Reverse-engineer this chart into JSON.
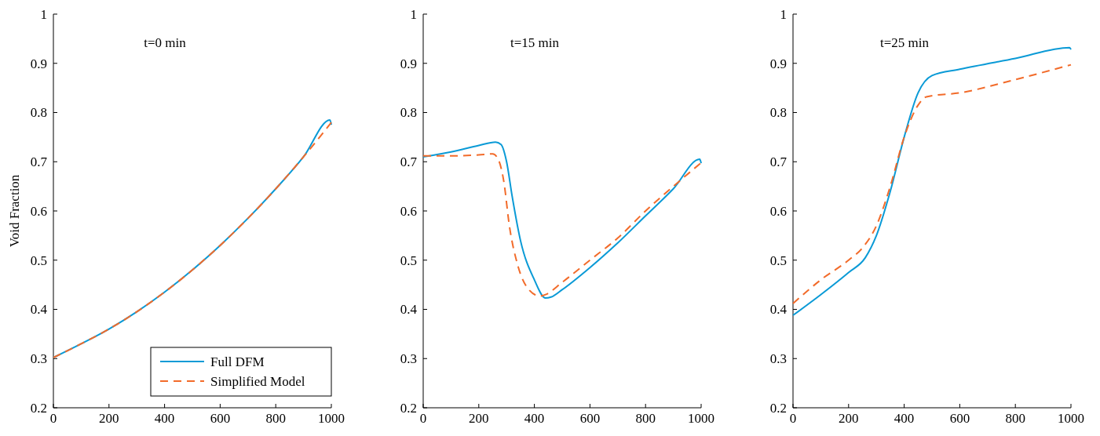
{
  "chart_data": [
    {
      "type": "line",
      "title": "t=0 min",
      "ylabel": "Void Fraction",
      "xlim": [
        0,
        1000
      ],
      "ylim": [
        0.2,
        1
      ],
      "xticks": [
        0,
        200,
        400,
        600,
        800,
        1000
      ],
      "yticks": [
        0.2,
        0.3,
        0.4,
        0.5,
        0.6,
        0.7,
        0.8,
        0.9,
        1
      ],
      "legend": "bottom right",
      "grid": false,
      "series": [
        {
          "name": "Full DFM",
          "color": "#0a9ad6",
          "line_style": "solid",
          "x": [
            0,
            100,
            200,
            300,
            400,
            500,
            600,
            700,
            800,
            900,
            995,
            1000
          ],
          "values": [
            0.302,
            0.33,
            0.36,
            0.395,
            0.435,
            0.48,
            0.53,
            0.585,
            0.645,
            0.71,
            0.785,
            0.775
          ]
        },
        {
          "name": "Simplified Model",
          "color": "#f26b2a",
          "line_style": "dashed",
          "x": [
            0,
            100,
            200,
            300,
            400,
            500,
            600,
            700,
            800,
            900,
            1000
          ],
          "values": [
            0.302,
            0.33,
            0.36,
            0.395,
            0.435,
            0.48,
            0.53,
            0.585,
            0.645,
            0.71,
            0.78
          ]
        }
      ]
    },
    {
      "type": "line",
      "title": "t=15 min",
      "xlim": [
        0,
        1000
      ],
      "ylim": [
        0.2,
        1
      ],
      "xticks": [
        0,
        200,
        400,
        600,
        800,
        1000
      ],
      "yticks": [
        0.2,
        0.3,
        0.4,
        0.5,
        0.6,
        0.7,
        0.8,
        0.9,
        1
      ],
      "legend": false,
      "grid": false,
      "series": [
        {
          "color": "#0a9ad6",
          "line_style": "solid",
          "x": [
            0,
            100,
            200,
            260,
            280,
            300,
            320,
            350,
            400,
            440,
            460,
            500,
            600,
            700,
            800,
            900,
            995,
            1000
          ],
          "values": [
            0.71,
            0.72,
            0.733,
            0.74,
            0.735,
            0.7,
            0.63,
            0.54,
            0.46,
            0.423,
            0.425,
            0.44,
            0.485,
            0.535,
            0.59,
            0.645,
            0.705,
            0.697
          ]
        },
        {
          "color": "#f26b2a",
          "line_style": "dashed",
          "x": [
            0,
            100,
            200,
            250,
            270,
            290,
            310,
            340,
            380,
            420,
            440,
            500,
            600,
            700,
            800,
            900,
            1000
          ],
          "values": [
            0.712,
            0.712,
            0.714,
            0.716,
            0.705,
            0.66,
            0.57,
            0.49,
            0.44,
            0.427,
            0.43,
            0.455,
            0.5,
            0.545,
            0.6,
            0.65,
            0.698
          ]
        }
      ]
    },
    {
      "type": "line",
      "title": "t=25 min",
      "xlim": [
        0,
        1000
      ],
      "ylim": [
        0.2,
        1
      ],
      "xticks": [
        0,
        200,
        400,
        600,
        800,
        1000
      ],
      "yticks": [
        0.2,
        0.3,
        0.4,
        0.5,
        0.6,
        0.7,
        0.8,
        0.9,
        1
      ],
      "legend": false,
      "grid": false,
      "series": [
        {
          "color": "#0a9ad6",
          "line_style": "solid",
          "x": [
            0,
            100,
            200,
            260,
            300,
            350,
            400,
            450,
            500,
            600,
            800,
            995,
            1000
          ],
          "values": [
            0.388,
            0.43,
            0.475,
            0.505,
            0.55,
            0.64,
            0.75,
            0.84,
            0.875,
            0.888,
            0.91,
            0.932,
            0.928
          ]
        },
        {
          "color": "#f26b2a",
          "line_style": "dashed",
          "x": [
            0,
            100,
            200,
            250,
            300,
            350,
            400,
            450,
            480,
            600,
            800,
            1000
          ],
          "values": [
            0.412,
            0.46,
            0.5,
            0.525,
            0.57,
            0.65,
            0.75,
            0.815,
            0.832,
            0.84,
            0.867,
            0.897
          ]
        }
      ]
    }
  ]
}
